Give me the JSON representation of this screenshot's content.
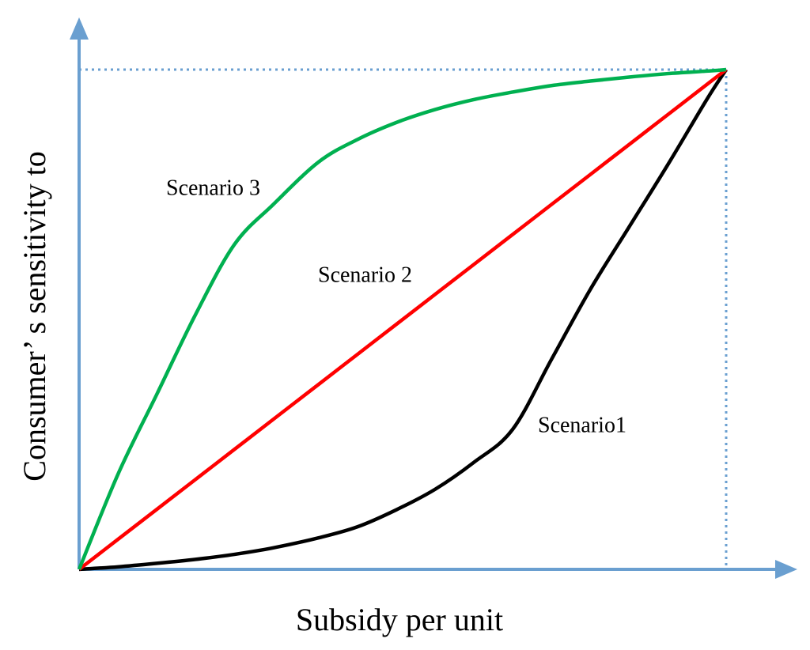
{
  "chart_data": {
    "type": "line",
    "x_label": "Subsidy per unit",
    "y_label": "Consumer’ s sensitivity to",
    "xlim": [
      0,
      100
    ],
    "ylim": [
      0,
      100
    ],
    "axis_color": "#6a9fd0",
    "x": [
      0,
      6,
      12,
      18,
      24,
      30,
      37,
      43,
      49,
      55,
      61,
      67,
      73,
      79,
      85,
      91,
      97,
      100
    ],
    "series": [
      {
        "name": "Scenario1",
        "color": "#000000",
        "values": [
          0,
          0.5,
          1.2,
          2,
          3,
          4.3,
          6.3,
          8.5,
          11.9,
          16,
          21.4,
          28,
          42,
          56,
          68.5,
          81,
          94,
          100
        ]
      },
      {
        "name": "Scenario 2",
        "color": "#ff0000",
        "values": [
          0,
          6,
          12,
          18,
          24,
          30,
          37,
          43,
          49,
          55,
          61,
          67,
          73,
          79,
          85,
          91,
          97,
          100
        ]
      },
      {
        "name": "Scenario 3",
        "color": "#00b050",
        "values": [
          0,
          19,
          35,
          51,
          65,
          73,
          81.5,
          86,
          89.4,
          92,
          94,
          95.5,
          96.8,
          97.7,
          98.5,
          99.2,
          99.7,
          100
        ]
      }
    ]
  }
}
